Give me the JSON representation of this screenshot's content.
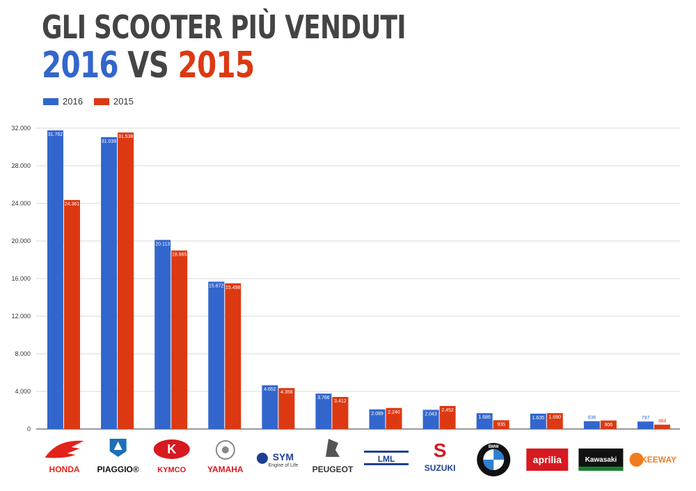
{
  "title": {
    "line1": "GLI SCOOTER PIÙ VENDUTI",
    "year_a": "2016",
    "vs": " VS ",
    "year_b": "2015"
  },
  "legend": [
    {
      "label": "2016",
      "color": "#3366cc"
    },
    {
      "label": "2015",
      "color": "#dc3912"
    }
  ],
  "chart_data": {
    "type": "bar",
    "categories": [
      "HONDA",
      "PIAGGIO",
      "KYMCO",
      "YAMAHA",
      "SYM",
      "PEUGEOT",
      "LML",
      "SUZUKI",
      "BMW",
      "aprilia",
      "Kawasaki",
      "KEEWAY"
    ],
    "series": [
      {
        "name": "2016",
        "color": "#3366cc",
        "values": [
          31762,
          31039,
          20113,
          15672,
          4652,
          3766,
          2089,
          2043,
          1686,
          1635,
          836,
          797
        ],
        "labels": [
          "31.762",
          "31.039",
          "20.113",
          "15.672",
          "4.652",
          "3.766",
          "2.089",
          "2.043",
          "1.686",
          "1.635",
          "836",
          "797"
        ]
      },
      {
        "name": "2015",
        "color": "#dc3912",
        "values": [
          24361,
          31538,
          18985,
          15498,
          4356,
          3412,
          2240,
          2452,
          935,
          1690,
          906,
          464
        ],
        "labels": [
          "24.361",
          "31.538",
          "18.985",
          "15.498",
          "4.356",
          "3.412",
          "2.240",
          "2.452",
          "935",
          "1.690",
          "906",
          "464"
        ]
      }
    ],
    "ylim": [
      0,
      32000
    ],
    "yticks": [
      0,
      4000,
      8000,
      12000,
      16000,
      20000,
      24000,
      28000,
      32000
    ],
    "ytick_labels": [
      "0",
      "4.000",
      "8.000",
      "12.000",
      "16.000",
      "20.000",
      "24.000",
      "28.000",
      "32.000"
    ],
    "grid": true,
    "legend_position": "top-left",
    "xlabel": "",
    "ylabel": ""
  },
  "logos": [
    {
      "text": "HONDA",
      "color": "#e2231a",
      "icon": "honda-wing-icon"
    },
    {
      "text": "PIAGGIO®",
      "color": "#111111",
      "icon": "piaggio-shield-icon"
    },
    {
      "text": "KYMCO",
      "color": "#d71920",
      "icon": "kymco-k-icon"
    },
    {
      "text": "YAMAHA",
      "color": "#d71920",
      "icon": "yamaha-tuning-forks-icon"
    },
    {
      "text": "SYM",
      "sub": "Engine of Life",
      "color": "#1d3f94",
      "icon": "sym-circle-icon"
    },
    {
      "text": "PEUGEOT",
      "color": "#333333",
      "icon": "peugeot-lion-icon"
    },
    {
      "text": "LML",
      "color": "#1d3f94",
      "icon": "lml-bar-icon"
    },
    {
      "text": "SUZUKI",
      "color": "#1d3f94",
      "icon": "suzuki-s-icon"
    },
    {
      "text": "BMW",
      "color": "#111111",
      "icon": "bmw-roundel-icon"
    },
    {
      "text": "aprilia",
      "color": "#d71920",
      "icon": "aprilia-badge-icon"
    },
    {
      "text": "Kawasaki",
      "color": "#1a7f2e",
      "icon": "kawasaki-badge-icon"
    },
    {
      "text": "KEEWAY",
      "color": "#f07c1f",
      "icon": "keeway-circle-icon"
    }
  ]
}
